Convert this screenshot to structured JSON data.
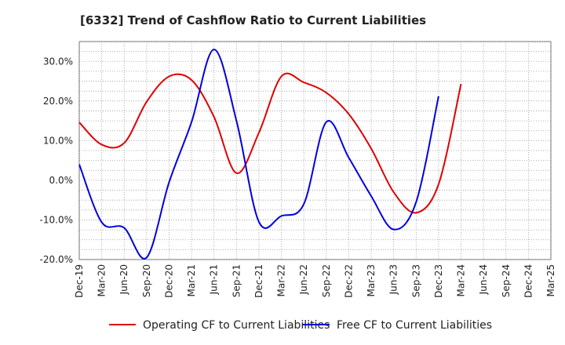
{
  "chart_data": {
    "type": "line",
    "title": "[6332]  Trend of Cashflow Ratio to Current Liabilities",
    "xlabel": "",
    "ylabel": "",
    "x": [
      "Dec-19",
      "Mar-20",
      "Jun-20",
      "Sep-20",
      "Dec-20",
      "Mar-21",
      "Jun-21",
      "Sep-21",
      "Dec-21",
      "Mar-22",
      "Jun-22",
      "Sep-22",
      "Dec-22",
      "Mar-23",
      "Jun-23",
      "Sep-23",
      "Dec-23",
      "Mar-24",
      "Jun-24",
      "Sep-24",
      "Dec-24",
      "Mar-25"
    ],
    "ylim": [
      -20,
      35
    ],
    "yticks": [
      30,
      20,
      10,
      0,
      -10,
      -20
    ],
    "ytick_labels": [
      "30.0%",
      "20.0%",
      "10.0%",
      "0.0%",
      "-10.0%",
      "-20.0%"
    ],
    "grid": true,
    "legend_position": "bottom",
    "series": [
      {
        "name": "Operating CF to Current Liabilities",
        "color": "#e00000",
        "values": [
          14.6,
          9.0,
          9.4,
          19.8,
          26.2,
          25.3,
          16.0,
          1.8,
          12.0,
          26.2,
          24.7,
          22.1,
          16.7,
          8.0,
          -3.0,
          -8.2,
          -1.0,
          24.3,
          null,
          null,
          null,
          null
        ]
      },
      {
        "name": "Free CF to Current Liabilities",
        "color": "#0000e0",
        "values": [
          4.0,
          -10.6,
          -12.0,
          -19.5,
          -0.5,
          14.7,
          33.0,
          15.0,
          -10.5,
          -9.0,
          -6.0,
          14.7,
          5.7,
          -4.0,
          -12.4,
          -5.5,
          21.2,
          null,
          null,
          null,
          null,
          null
        ]
      }
    ]
  }
}
